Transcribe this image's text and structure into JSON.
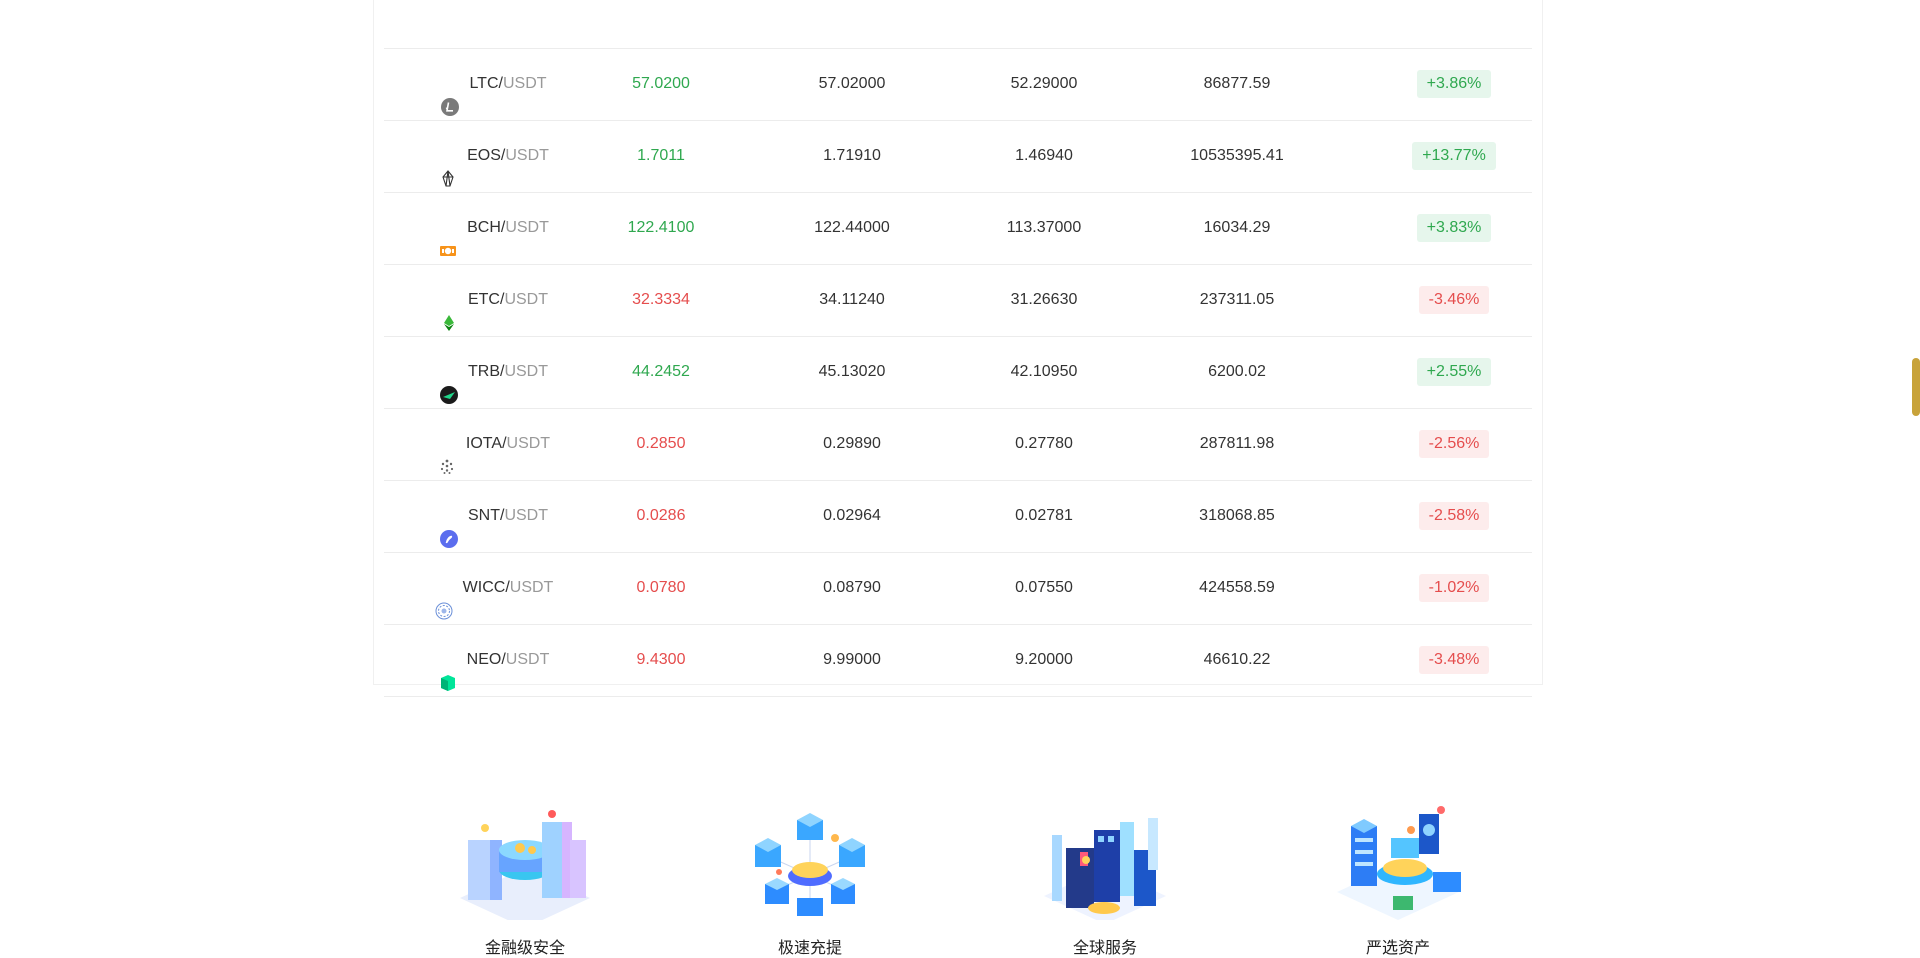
{
  "market": {
    "rows": [
      {
        "base": "",
        "sep": "",
        "quote": "",
        "last": "",
        "high": "",
        "low": "",
        "volume": "",
        "change": "",
        "trend": "up",
        "icon": "none"
      },
      {
        "base": "LTC",
        "sep": "/",
        "quote": "USDT",
        "last": "57.0200",
        "high": "57.02000",
        "low": "52.29000",
        "volume": "86877.59",
        "change": "+3.86%",
        "trend": "up",
        "icon": "ltc-icon"
      },
      {
        "base": "EOS",
        "sep": "/",
        "quote": "USDT",
        "last": "1.7011",
        "high": "1.71910",
        "low": "1.46940",
        "volume": "10535395.41",
        "change": "+13.77%",
        "trend": "up",
        "icon": "eos-icon"
      },
      {
        "base": "BCH",
        "sep": "/",
        "quote": "USDT",
        "last": "122.4100",
        "high": "122.44000",
        "low": "113.37000",
        "volume": "16034.29",
        "change": "+3.83%",
        "trend": "up",
        "icon": "bch-icon"
      },
      {
        "base": "ETC",
        "sep": "/",
        "quote": "USDT",
        "last": "32.3334",
        "high": "34.11240",
        "low": "31.26630",
        "volume": "237311.05",
        "change": "-3.46%",
        "trend": "down",
        "icon": "etc-icon"
      },
      {
        "base": "TRB",
        "sep": "/",
        "quote": "USDT",
        "last": "44.2452",
        "high": "45.13020",
        "low": "42.10950",
        "volume": "6200.02",
        "change": "+2.55%",
        "trend": "up",
        "icon": "trb-icon"
      },
      {
        "base": "IOTA",
        "sep": "/",
        "quote": "USDT",
        "last": "0.2850",
        "high": "0.29890",
        "low": "0.27780",
        "volume": "287811.98",
        "change": "-2.56%",
        "trend": "down",
        "icon": "iota-icon"
      },
      {
        "base": "SNT",
        "sep": "/",
        "quote": "USDT",
        "last": "0.0286",
        "high": "0.02964",
        "low": "0.02781",
        "volume": "318068.85",
        "change": "-2.58%",
        "trend": "down",
        "icon": "snt-icon"
      },
      {
        "base": "WICC",
        "sep": "/",
        "quote": "USDT",
        "last": "0.0780",
        "high": "0.08790",
        "low": "0.07550",
        "volume": "424558.59",
        "change": "-1.02%",
        "trend": "down",
        "icon": "wicc-icon"
      },
      {
        "base": "NEO",
        "sep": "/",
        "quote": "USDT",
        "last": "9.4300",
        "high": "9.99000",
        "low": "9.20000",
        "volume": "46610.22",
        "change": "-3.48%",
        "trend": "down",
        "icon": "neo-icon"
      }
    ]
  },
  "features": [
    {
      "label": "金融级安全",
      "icon": "security-illustration-icon"
    },
    {
      "label": "极速充提",
      "icon": "fast-deposit-illustration-icon"
    },
    {
      "label": "全球服务",
      "icon": "global-service-illustration-icon"
    },
    {
      "label": "严选资产",
      "icon": "selected-assets-illustration-icon"
    }
  ],
  "colors": {
    "up": "#2fa84f",
    "down": "#e54d4d",
    "up_bg": "#e6f6ec",
    "down_bg": "#fdecec",
    "scroll_thumb": "#c8a33a"
  }
}
